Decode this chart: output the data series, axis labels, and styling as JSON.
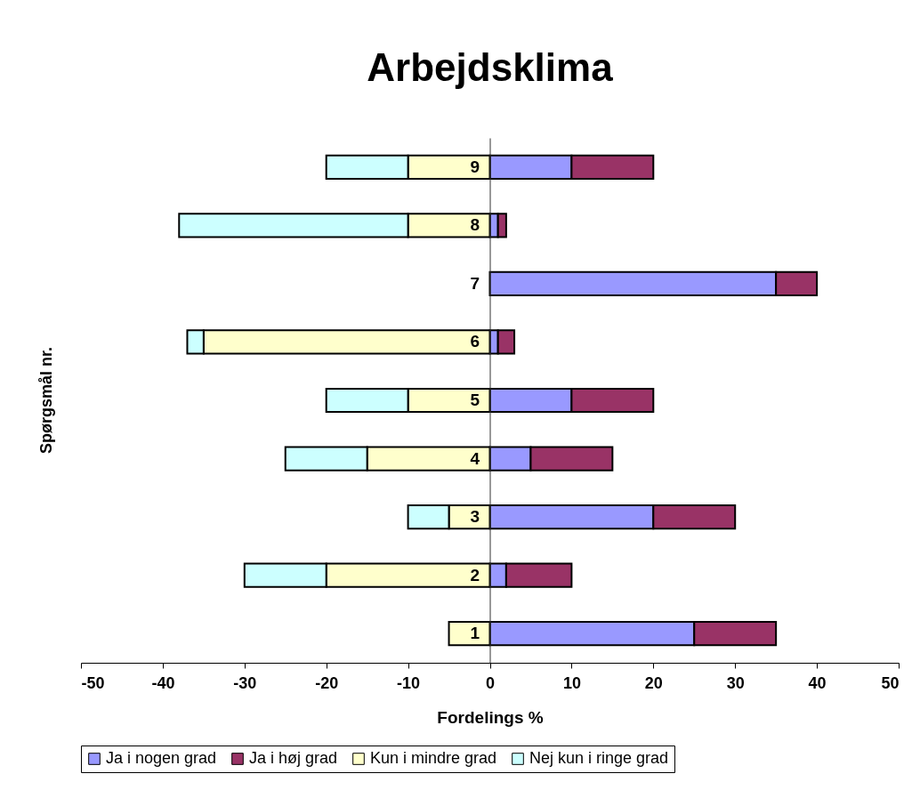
{
  "chart_data": {
    "type": "bar",
    "orientation": "horizontal",
    "stacked": true,
    "title": "Arbejdsklima",
    "xlabel": "Fordelings %",
    "ylabel": "Spørgsmål nr.",
    "categories": [
      "9",
      "8",
      "7",
      "6",
      "5",
      "4",
      "3",
      "2",
      "1"
    ],
    "series": [
      {
        "name": "Ja i nogen grad",
        "color": "#9999ff",
        "values": [
          10,
          1,
          35,
          1,
          10,
          5,
          20,
          2,
          25
        ]
      },
      {
        "name": "Ja i høj grad",
        "color": "#993366",
        "values": [
          10,
          1,
          5,
          2,
          10,
          10,
          10,
          8,
          10
        ]
      },
      {
        "name": "Kun i mindre grad",
        "color": "#ffffcc",
        "values": [
          -10,
          -10,
          null,
          -35,
          -10,
          -15,
          -5,
          -20,
          -5
        ]
      },
      {
        "name": "Nej kun i ringe grad",
        "color": "#ccffff",
        "values": [
          -10,
          -28,
          null,
          -2,
          -10,
          -10,
          -5,
          -10,
          null
        ]
      }
    ],
    "xlim": [
      -50,
      50
    ],
    "xticks": [
      -50,
      -40,
      -30,
      -20,
      -10,
      0,
      10,
      20,
      30,
      40,
      50
    ],
    "grid": false,
    "legend": "bottom"
  }
}
